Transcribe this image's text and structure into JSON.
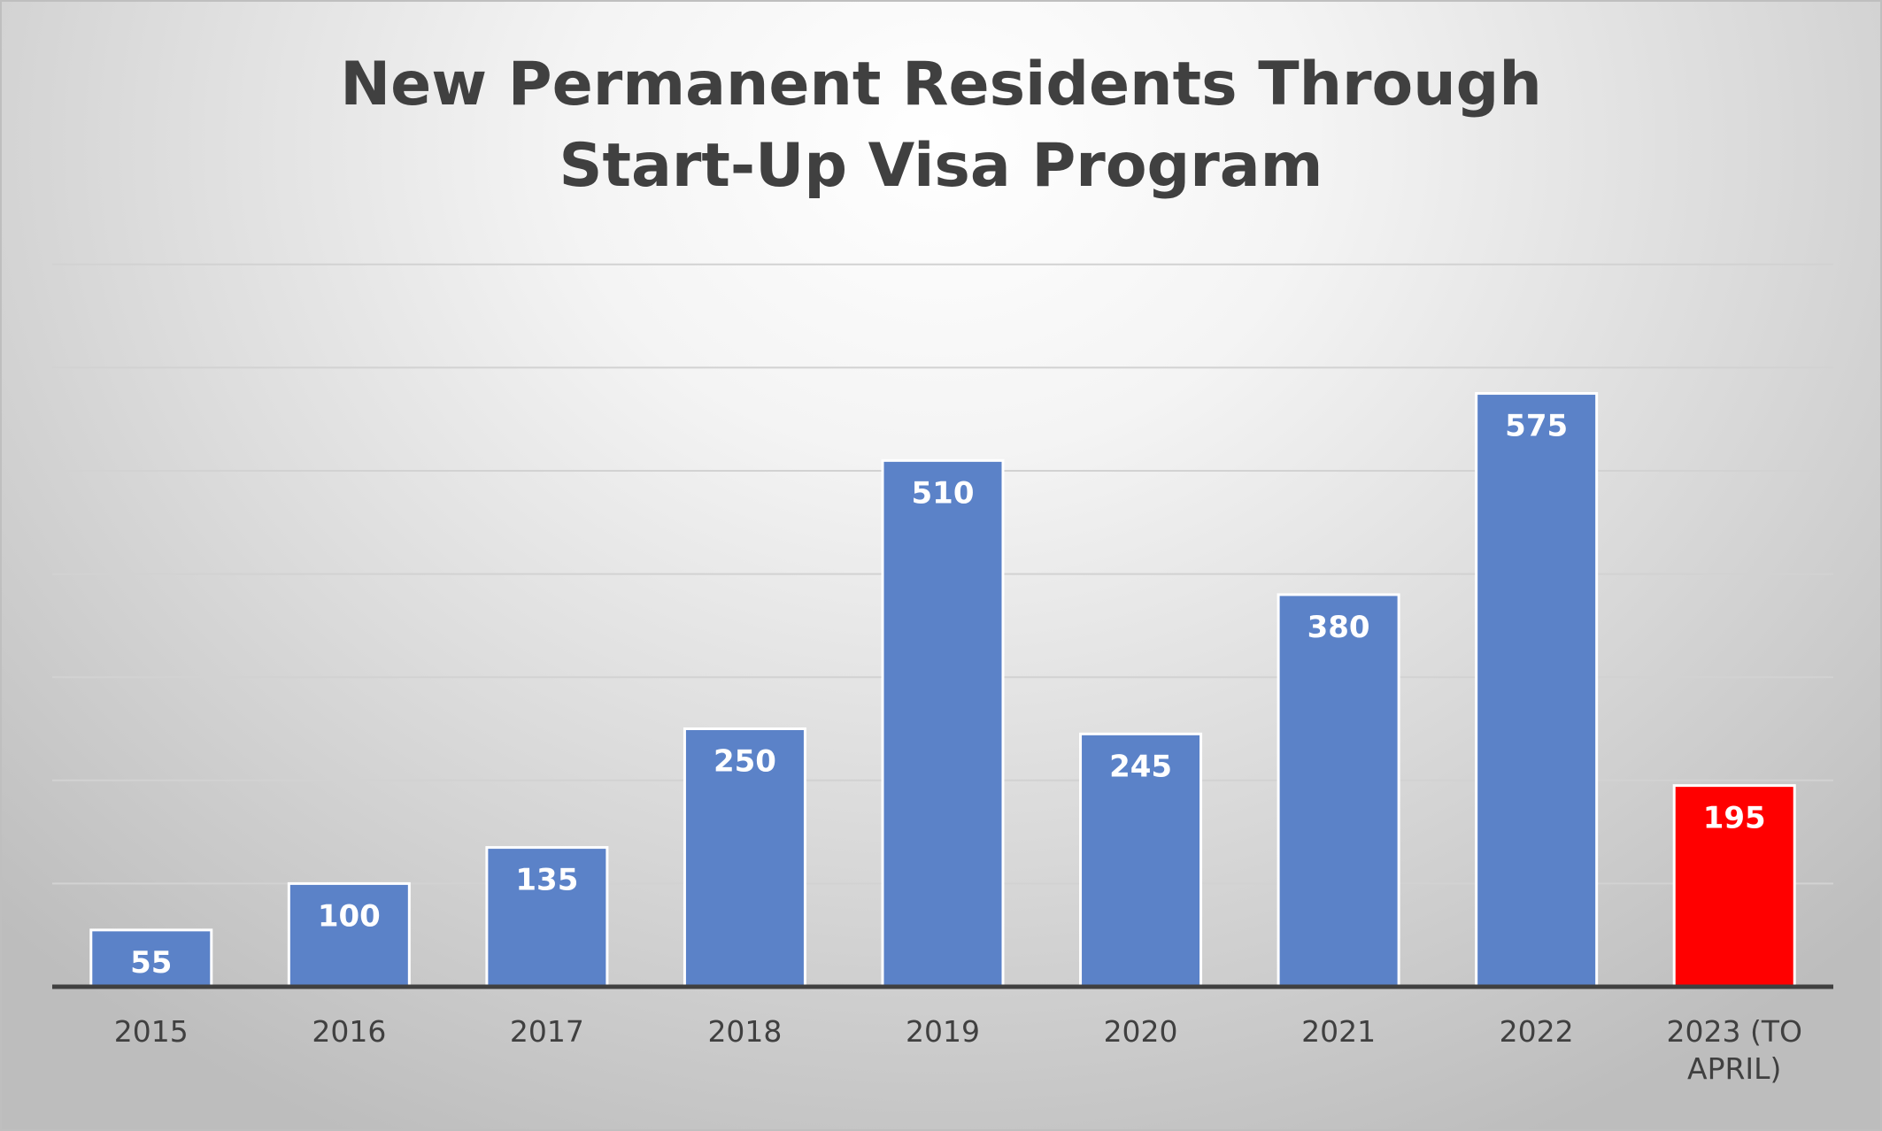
{
  "chart_data": {
    "type": "bar",
    "title": "New Permanent Residents Through\nStart-Up Visa Program",
    "categories": [
      "2015",
      "2016",
      "2017",
      "2018",
      "2019",
      "2020",
      "2021",
      "2022",
      "2023 (TO APRIL)"
    ],
    "category_label_lines": [
      [
        "2015"
      ],
      [
        "2016"
      ],
      [
        "2017"
      ],
      [
        "2018"
      ],
      [
        "2019"
      ],
      [
        "2020"
      ],
      [
        "2021"
      ],
      [
        "2022"
      ],
      [
        "2023 (TO",
        "APRIL)"
      ]
    ],
    "values": [
      55,
      100,
      135,
      250,
      510,
      245,
      380,
      575,
      195
    ],
    "bar_colors": [
      "#5b82c8",
      "#5b82c8",
      "#5b82c8",
      "#5b82c8",
      "#5b82c8",
      "#5b82c8",
      "#5b82c8",
      "#5b82c8",
      "#ff0000"
    ],
    "xlabel": "",
    "ylabel": "",
    "ylim": [
      0,
      700
    ],
    "gridline_step": 100,
    "grid": true,
    "legend": "none",
    "data_labels": "inside-top"
  }
}
